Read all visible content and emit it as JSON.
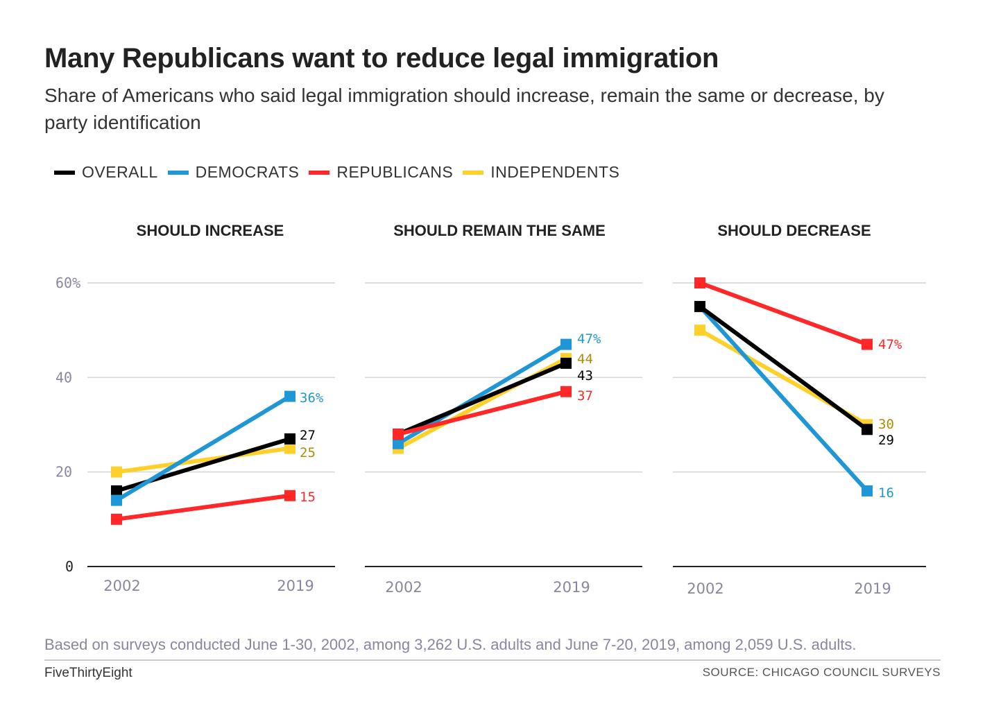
{
  "title": "Many Republicans want to reduce legal immigration",
  "subtitle": "Share of Americans who said legal immigration should increase, remain the same or decrease, by party identification",
  "legend": [
    {
      "label": "OVERALL",
      "color": "#000000"
    },
    {
      "label": "DEMOCRATS",
      "color": "#1f96d6"
    },
    {
      "label": "REPUBLICANS",
      "color": "#ff2728"
    },
    {
      "label": "INDEPENDENTS",
      "color": "#fed12a"
    }
  ],
  "footer": {
    "note": "Based on surveys conducted June 1-30, 2002, among 3,262 U.S. adults and June 7-20, 2019, among 2,059 U.S. adults.",
    "brand": "FiveThirtyEight",
    "source": "SOURCE: CHICAGO COUNCIL SURVEYS"
  },
  "chart_data": [
    {
      "type": "line",
      "title": "SHOULD INCREASE",
      "categories": [
        "2002",
        "2019"
      ],
      "ylim": [
        0,
        60
      ],
      "yticks": [
        "0",
        "20",
        "40",
        "60%"
      ],
      "series": [
        {
          "name": "INDEPENDENTS",
          "color": "#fed12a",
          "label_color": "#b08d00",
          "values": [
            20,
            25
          ],
          "end_label": "25"
        },
        {
          "name": "REPUBLICANS",
          "color": "#ff2728",
          "label_color": "#ff2728",
          "values": [
            10,
            15
          ],
          "end_label": "15"
        },
        {
          "name": "OVERALL",
          "color": "#000000",
          "label_color": "#000000",
          "values": [
            16,
            27
          ],
          "end_label": "27"
        },
        {
          "name": "DEMOCRATS",
          "color": "#1f96d6",
          "label_color": "#1f96d6",
          "values": [
            14,
            36
          ],
          "end_label": "36%"
        }
      ]
    },
    {
      "type": "line",
      "title": "SHOULD REMAIN THE SAME",
      "categories": [
        "2002",
        "2019"
      ],
      "ylim": [
        0,
        60
      ],
      "series": [
        {
          "name": "INDEPENDENTS",
          "color": "#fed12a",
          "label_color": "#b08d00",
          "values": [
            25,
            44
          ],
          "end_label": "44"
        },
        {
          "name": "DEMOCRATS",
          "color": "#1f96d6",
          "label_color": "#1f96d6",
          "values": [
            26,
            47
          ],
          "end_label": "47%"
        },
        {
          "name": "OVERALL",
          "color": "#000000",
          "label_color": "#000000",
          "values": [
            28,
            43
          ],
          "end_label": "43"
        },
        {
          "name": "REPUBLICANS",
          "color": "#ff2728",
          "label_color": "#ff2728",
          "values": [
            28,
            37
          ],
          "end_label": "37"
        }
      ]
    },
    {
      "type": "line",
      "title": "SHOULD DECREASE",
      "categories": [
        "2002",
        "2019"
      ],
      "ylim": [
        0,
        60
      ],
      "series": [
        {
          "name": "INDEPENDENTS",
          "color": "#fed12a",
          "label_color": "#b08d00",
          "values": [
            50,
            30
          ],
          "end_label": "30"
        },
        {
          "name": "DEMOCRATS",
          "color": "#1f96d6",
          "label_color": "#1f96d6",
          "values": [
            55,
            16
          ],
          "end_label": "16"
        },
        {
          "name": "OVERALL",
          "color": "#000000",
          "label_color": "#000000",
          "values": [
            55,
            29
          ],
          "end_label": "29"
        },
        {
          "name": "REPUBLICANS",
          "color": "#ff2728",
          "label_color": "#ff2728",
          "values": [
            60,
            47
          ],
          "end_label": "47%"
        }
      ]
    }
  ]
}
